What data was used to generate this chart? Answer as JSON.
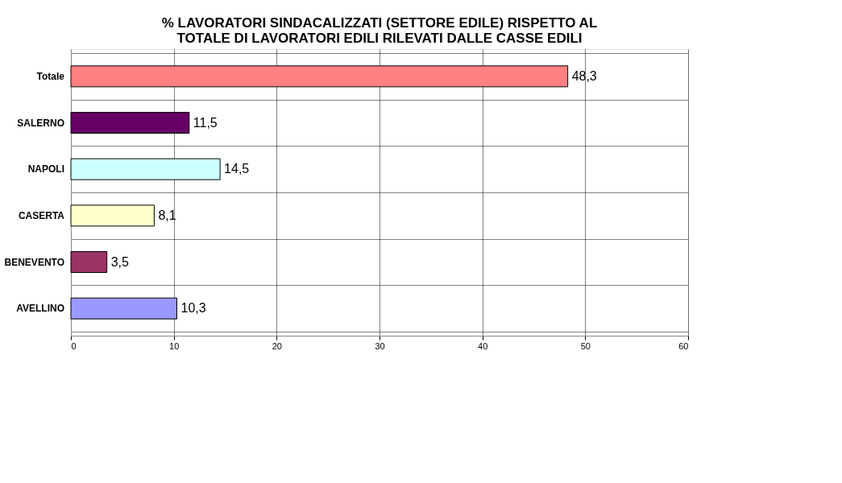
{
  "chart_data": {
    "type": "bar",
    "orientation": "horizontal",
    "title": "% LAVORATORI SINDACALIZZATI (SETTORE EDILE) RISPETTO AL\nTOTALE DI LAVORATORI EDILI RILEVATI DALLE CASSE EDILI",
    "categories": [
      "Totale",
      "SALERNO",
      "NAPOLI",
      "CASERTA",
      "BENEVENTO",
      "AVELLINO"
    ],
    "values": [
      48.3,
      11.5,
      14.5,
      8.1,
      3.5,
      10.3
    ],
    "colors": [
      "#ff8080",
      "#660066",
      "#ccffff",
      "#ffffcc",
      "#993366",
      "#9999ff"
    ],
    "value_labels": [
      "48,3",
      "11,5",
      "14,5",
      "8,1",
      "3,5",
      "10,3"
    ],
    "xlim": [
      0,
      60
    ],
    "xticks": [
      0,
      10,
      20,
      30,
      40,
      50,
      60
    ],
    "grid": true
  }
}
